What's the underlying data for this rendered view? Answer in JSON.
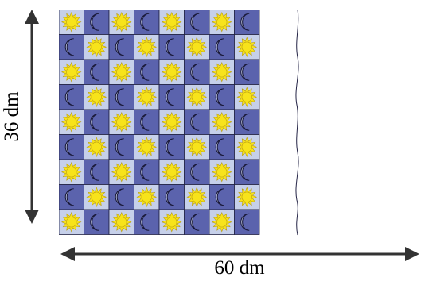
{
  "dimensions": {
    "height_label": "36 dm",
    "width_label": "60 dm"
  },
  "pattern": {
    "visible_rows": 9,
    "visible_cols": 8,
    "tile_types": [
      "sun",
      "moon"
    ]
  },
  "colors": {
    "light_tile": "#c6d0ea",
    "dark_tile": "#5b63ad",
    "sun": "#f7e31b",
    "sun_stroke": "#b89b10",
    "moon": "#cfd8f2",
    "moon_stroke": "#1a1a3a",
    "grid_line": "#222244",
    "arrow": "#333333"
  }
}
